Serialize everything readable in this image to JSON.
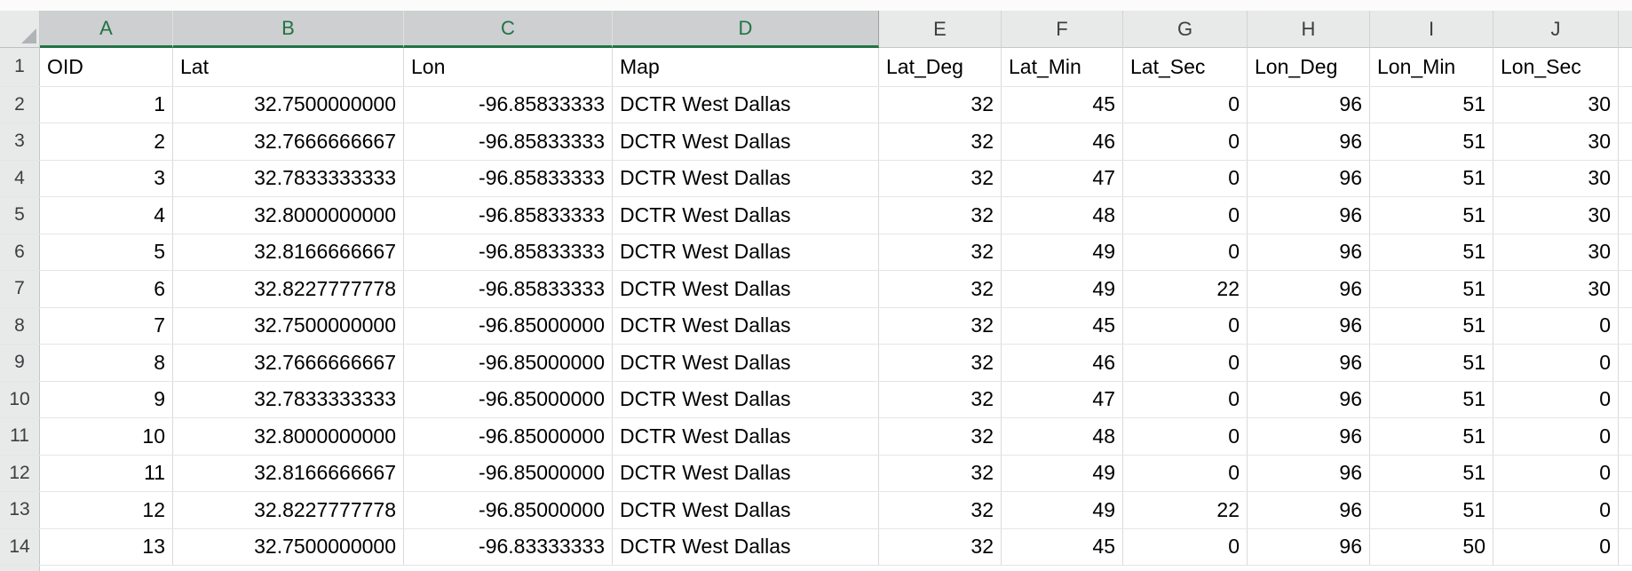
{
  "sheet": {
    "column_headers": [
      "A",
      "B",
      "C",
      "D",
      "E",
      "F",
      "G",
      "H",
      "I",
      "J"
    ],
    "selected_columns": [
      "A",
      "B",
      "C",
      "D"
    ],
    "field_row": {
      "number": "1",
      "cells": [
        "OID",
        "Lat",
        "Lon",
        "Map",
        "Lat_Deg",
        "Lat_Min",
        "Lat_Sec",
        "Lon_Deg",
        "Lon_Min",
        "Lon_Sec"
      ]
    },
    "rows": [
      {
        "number": "2",
        "cells": [
          "1",
          "32.7500000000",
          "-96.85833333",
          "DCTR West Dallas",
          "32",
          "45",
          "0",
          "96",
          "51",
          "30"
        ]
      },
      {
        "number": "3",
        "cells": [
          "2",
          "32.7666666667",
          "-96.85833333",
          "DCTR West Dallas",
          "32",
          "46",
          "0",
          "96",
          "51",
          "30"
        ]
      },
      {
        "number": "4",
        "cells": [
          "3",
          "32.7833333333",
          "-96.85833333",
          "DCTR West Dallas",
          "32",
          "47",
          "0",
          "96",
          "51",
          "30"
        ]
      },
      {
        "number": "5",
        "cells": [
          "4",
          "32.8000000000",
          "-96.85833333",
          "DCTR West Dallas",
          "32",
          "48",
          "0",
          "96",
          "51",
          "30"
        ]
      },
      {
        "number": "6",
        "cells": [
          "5",
          "32.8166666667",
          "-96.85833333",
          "DCTR West Dallas",
          "32",
          "49",
          "0",
          "96",
          "51",
          "30"
        ]
      },
      {
        "number": "7",
        "cells": [
          "6",
          "32.8227777778",
          "-96.85833333",
          "DCTR West Dallas",
          "32",
          "49",
          "22",
          "96",
          "51",
          "30"
        ]
      },
      {
        "number": "8",
        "cells": [
          "7",
          "32.7500000000",
          "-96.85000000",
          "DCTR West Dallas",
          "32",
          "45",
          "0",
          "96",
          "51",
          "0"
        ]
      },
      {
        "number": "9",
        "cells": [
          "8",
          "32.7666666667",
          "-96.85000000",
          "DCTR West Dallas",
          "32",
          "46",
          "0",
          "96",
          "51",
          "0"
        ]
      },
      {
        "number": "10",
        "cells": [
          "9",
          "32.7833333333",
          "-96.85000000",
          "DCTR West Dallas",
          "32",
          "47",
          "0",
          "96",
          "51",
          "0"
        ]
      },
      {
        "number": "11",
        "cells": [
          "10",
          "32.8000000000",
          "-96.85000000",
          "DCTR West Dallas",
          "32",
          "48",
          "0",
          "96",
          "51",
          "0"
        ]
      },
      {
        "number": "12",
        "cells": [
          "11",
          "32.8166666667",
          "-96.85000000",
          "DCTR West Dallas",
          "32",
          "49",
          "0",
          "96",
          "51",
          "0"
        ]
      },
      {
        "number": "13",
        "cells": [
          "12",
          "32.8227777778",
          "-96.85000000",
          "DCTR West Dallas",
          "32",
          "49",
          "22",
          "96",
          "51",
          "0"
        ]
      },
      {
        "number": "14",
        "cells": [
          "13",
          "32.7500000000",
          "-96.83333333",
          "DCTR West Dallas",
          "32",
          "45",
          "0",
          "96",
          "50",
          "0"
        ]
      }
    ],
    "colors": {
      "accent_green": "#217346",
      "selected_header_bg": "#cdcfd0",
      "header_bg": "#e8e9e9",
      "header_text": "#3c3f41",
      "grid_vertical": "#d9dadb",
      "grid_horizontal": "#e4e5e5",
      "cell_text": "#000000",
      "triangle": "#b1b4b6"
    }
  }
}
